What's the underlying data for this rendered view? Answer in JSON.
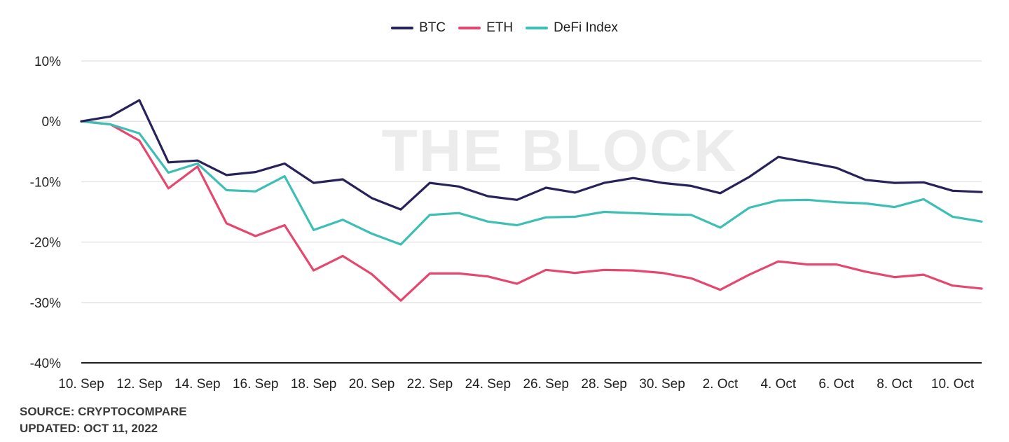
{
  "chart_data": {
    "type": "line",
    "title": "",
    "xlabel": "",
    "ylabel": "",
    "ylim": [
      -40,
      10
    ],
    "yticks": [
      "10%",
      "0%",
      "-10%",
      "-20%",
      "-30%",
      "-40%"
    ],
    "ytick_values": [
      10,
      0,
      -10,
      -20,
      -30,
      -40
    ],
    "xtick_labels": [
      "10. Sep",
      "12. Sep",
      "14. Sep",
      "16. Sep",
      "18. Sep",
      "20. Sep",
      "22. Sep",
      "24. Sep",
      "26. Sep",
      "28. Sep",
      "30. Sep",
      "2. Oct",
      "4. Oct",
      "6. Oct",
      "8. Oct",
      "10. Oct"
    ],
    "x": [
      "10. Sep",
      "11. Sep",
      "12. Sep",
      "13. Sep",
      "14. Sep",
      "15. Sep",
      "16. Sep",
      "17. Sep",
      "18. Sep",
      "19. Sep",
      "20. Sep",
      "21. Sep",
      "22. Sep",
      "23. Sep",
      "24. Sep",
      "25. Sep",
      "26. Sep",
      "27. Sep",
      "28. Sep",
      "29. Sep",
      "30. Sep",
      "1. Oct",
      "2. Oct",
      "3. Oct",
      "4. Oct",
      "5. Oct",
      "6. Oct",
      "7. Oct",
      "8. Oct",
      "9. Oct",
      "10. Oct",
      "11. Oct"
    ],
    "series": [
      {
        "name": "BTC",
        "color": "#27235a",
        "values": [
          0,
          0.8,
          3.5,
          -6.8,
          -6.5,
          -8.9,
          -8.4,
          -7.0,
          -10.2,
          -9.6,
          -12.7,
          -14.6,
          -10.2,
          -10.8,
          -12.4,
          -13.0,
          -11.0,
          -11.8,
          -10.2,
          -9.4,
          -10.2,
          -10.7,
          -11.9,
          -9.2,
          -5.9,
          -6.8,
          -7.7,
          -9.7,
          -10.2,
          -10.1,
          -11.5,
          -11.7
        ]
      },
      {
        "name": "ETH",
        "color": "#e5486f",
        "values": [
          0,
          -0.5,
          -3.2,
          -11.1,
          -7.5,
          -16.9,
          -19.0,
          -17.2,
          -24.7,
          -22.3,
          -25.3,
          -29.7,
          -25.2,
          -25.2,
          -25.7,
          -26.9,
          -24.6,
          -25.1,
          -24.6,
          -24.7,
          -25.1,
          -26.0,
          -27.9,
          -25.4,
          -23.2,
          -23.7,
          -23.7,
          -24.9,
          -25.8,
          -25.4,
          -27.2,
          -27.7
        ]
      },
      {
        "name": "DeFi Index",
        "color": "#3dbfb6",
        "values": [
          0,
          -0.5,
          -2.0,
          -8.5,
          -7.0,
          -11.4,
          -11.6,
          -9.1,
          -18.0,
          -16.3,
          -18.6,
          -20.4,
          -15.5,
          -15.2,
          -16.6,
          -17.2,
          -15.9,
          -15.8,
          -15.0,
          -15.2,
          -15.4,
          -15.5,
          -17.6,
          -14.3,
          -13.1,
          -13.0,
          -13.4,
          -13.6,
          -14.2,
          -12.9,
          -15.8,
          -16.6
        ]
      }
    ],
    "grid": true,
    "legend": "top-center",
    "watermark": "THE BLOCK"
  },
  "footer": {
    "source": "SOURCE: CRYPTOCOMPARE",
    "updated": "UPDATED: OCT 11, 2022"
  }
}
